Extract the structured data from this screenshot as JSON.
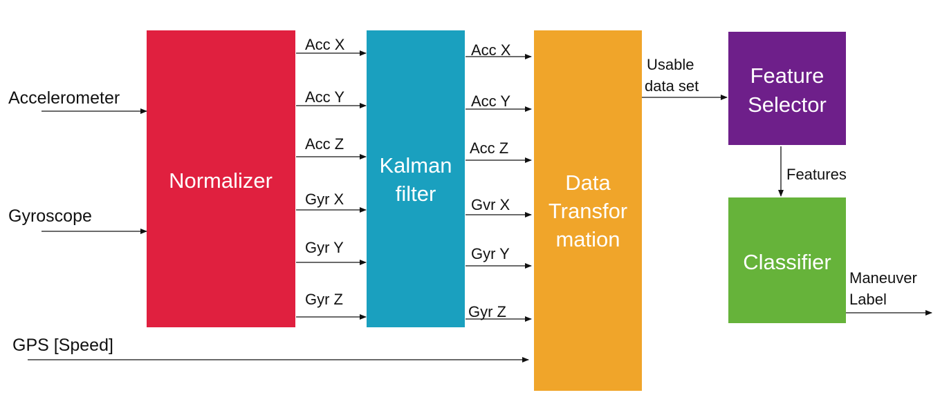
{
  "colors": {
    "normalizer": "#e0203f",
    "kalman": "#1aa0bf",
    "transform": "#f0a52a",
    "selector": "#6e1f8a",
    "classifier": "#66b33a",
    "wire": "#111111",
    "label": "#ffffff"
  },
  "inputs": {
    "accelerometer": "Accelerometer",
    "gyroscope": "Gyroscope",
    "gps": "GPS [Speed]"
  },
  "blocks": {
    "normalizer": [
      "Normalizer"
    ],
    "kalman": [
      "Kalman",
      "filter"
    ],
    "transform": [
      "Data",
      "Transfor",
      "mation"
    ],
    "selector": [
      "Feature",
      "Selector"
    ],
    "classifier": [
      "Classifier"
    ]
  },
  "signals_norm_to_kalman": [
    "Acc X",
    "Acc Y",
    "Acc Z",
    "Gyr X",
    "Gyr Y",
    "Gyr Z"
  ],
  "signals_kalman_to_transform": [
    "Acc X",
    "Acc Y",
    "Acc Z",
    "Gvr X",
    "Gyr Y",
    "Gyr Z"
  ],
  "transform_output": [
    "Usable",
    "data set"
  ],
  "selector_output": "Features",
  "classifier_output": [
    "Maneuver",
    "Label"
  ]
}
